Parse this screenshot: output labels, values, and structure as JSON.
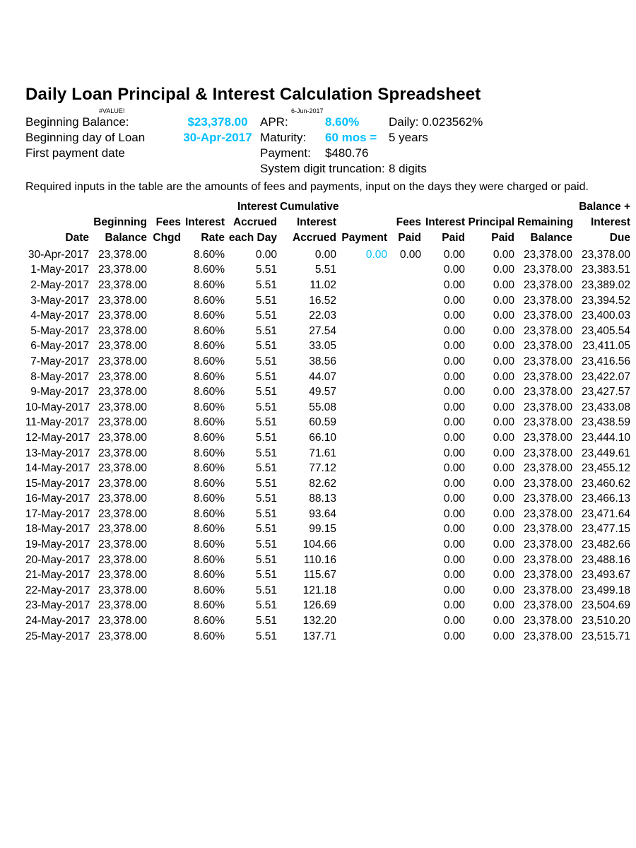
{
  "style": {
    "accent_color": "#00bfff",
    "text_color": "#000000",
    "background_color": "#ffffff",
    "font_family": "Arial",
    "title_fontsize": 24,
    "body_fontsize": 17,
    "table_fontsize": 15.5,
    "tiny_fontsize": 9
  },
  "title": "Daily Loan Principal & Interest Calculation Spreadsheet",
  "sub": {
    "value_error": "#VALUE!",
    "doc_date": "6-Jun-2017"
  },
  "summary": {
    "beginning_balance_label": "Beginning Balance:",
    "beginning_balance_value": "$23,378.00",
    "beginning_day_label": "Beginning day of Loan",
    "beginning_day_value": "30-Apr-2017",
    "first_payment_label": "First payment date",
    "apr_label": "APR:",
    "apr_value": "8.60%",
    "daily_label": "Daily: 0.023562%",
    "maturity_label": "Maturity:",
    "maturity_value": "60 mos =",
    "maturity_years": "5 years",
    "payment_label": "Payment:",
    "payment_value": "$480.76",
    "truncation_label": "System digit truncation:",
    "truncation_value": "8 digits"
  },
  "note": "Required inputs in the table are the amounts of fees and payments, input on the days they were charged or paid.",
  "table": {
    "columns": [
      {
        "key": "date",
        "h1": "",
        "h2": "",
        "h3": "Date",
        "width": "c-date"
      },
      {
        "key": "begbal",
        "h1": "",
        "h2": "Beginning",
        "h3": "Balance",
        "width": "c-begbal"
      },
      {
        "key": "feeschgd",
        "h1": "",
        "h2": "Fees",
        "h3": "Chgd",
        "width": "c-fees"
      },
      {
        "key": "rate",
        "h1": "",
        "h2": "Interest",
        "h3": "Rate",
        "width": "c-rate"
      },
      {
        "key": "accday",
        "h1": "Interest",
        "h2": "Accrued",
        "h3": "each Day",
        "width": "c-accday"
      },
      {
        "key": "cum",
        "h1": "Cumulative",
        "h2": "Interest",
        "h3": "Accrued",
        "width": "c-cum"
      },
      {
        "key": "payment",
        "h1": "",
        "h2": "",
        "h3": "Payment",
        "width": "c-pay"
      },
      {
        "key": "feespaid",
        "h1": "",
        "h2": "Fees",
        "h3": "Paid",
        "width": "c-fpaid"
      },
      {
        "key": "intpaid",
        "h1": "",
        "h2": "Interest",
        "h3": "Paid",
        "width": "c-ipaid"
      },
      {
        "key": "prinpaid",
        "h1": "",
        "h2": "Principal",
        "h3": "Paid",
        "width": "c-ppaid"
      },
      {
        "key": "rembal",
        "h1": "",
        "h2": "Remaining",
        "h3": "Balance",
        "width": "c-rembal"
      },
      {
        "key": "baldue",
        "h1": "Balance +",
        "h2": "Interest",
        "h3": "Due",
        "width": "c-baldue"
      }
    ],
    "rows": [
      {
        "date": "30-Apr-2017",
        "begbal": "23,378.00",
        "feeschgd": "",
        "rate": "8.60%",
        "accday": "0.00",
        "cum": "0.00",
        "payment": "0.00",
        "payment_accent": true,
        "feespaid": "0.00",
        "intpaid": "0.00",
        "prinpaid": "0.00",
        "rembal": "23,378.00",
        "baldue": "23,378.00"
      },
      {
        "date": "1-May-2017",
        "begbal": "23,378.00",
        "feeschgd": "",
        "rate": "8.60%",
        "accday": "5.51",
        "cum": "5.51",
        "payment": "",
        "feespaid": "",
        "intpaid": "0.00",
        "prinpaid": "0.00",
        "rembal": "23,378.00",
        "baldue": "23,383.51"
      },
      {
        "date": "2-May-2017",
        "begbal": "23,378.00",
        "feeschgd": "",
        "rate": "8.60%",
        "accday": "5.51",
        "cum": "11.02",
        "payment": "",
        "feespaid": "",
        "intpaid": "0.00",
        "prinpaid": "0.00",
        "rembal": "23,378.00",
        "baldue": "23,389.02"
      },
      {
        "date": "3-May-2017",
        "begbal": "23,378.00",
        "feeschgd": "",
        "rate": "8.60%",
        "accday": "5.51",
        "cum": "16.52",
        "payment": "",
        "feespaid": "",
        "intpaid": "0.00",
        "prinpaid": "0.00",
        "rembal": "23,378.00",
        "baldue": "23,394.52"
      },
      {
        "date": "4-May-2017",
        "begbal": "23,378.00",
        "feeschgd": "",
        "rate": "8.60%",
        "accday": "5.51",
        "cum": "22.03",
        "payment": "",
        "feespaid": "",
        "intpaid": "0.00",
        "prinpaid": "0.00",
        "rembal": "23,378.00",
        "baldue": "23,400.03"
      },
      {
        "date": "5-May-2017",
        "begbal": "23,378.00",
        "feeschgd": "",
        "rate": "8.60%",
        "accday": "5.51",
        "cum": "27.54",
        "payment": "",
        "feespaid": "",
        "intpaid": "0.00",
        "prinpaid": "0.00",
        "rembal": "23,378.00",
        "baldue": "23,405.54"
      },
      {
        "date": "6-May-2017",
        "begbal": "23,378.00",
        "feeschgd": "",
        "rate": "8.60%",
        "accday": "5.51",
        "cum": "33.05",
        "payment": "",
        "feespaid": "",
        "intpaid": "0.00",
        "prinpaid": "0.00",
        "rembal": "23,378.00",
        "baldue": "23,411.05"
      },
      {
        "date": "7-May-2017",
        "begbal": "23,378.00",
        "feeschgd": "",
        "rate": "8.60%",
        "accday": "5.51",
        "cum": "38.56",
        "payment": "",
        "feespaid": "",
        "intpaid": "0.00",
        "prinpaid": "0.00",
        "rembal": "23,378.00",
        "baldue": "23,416.56"
      },
      {
        "date": "8-May-2017",
        "begbal": "23,378.00",
        "feeschgd": "",
        "rate": "8.60%",
        "accday": "5.51",
        "cum": "44.07",
        "payment": "",
        "feespaid": "",
        "intpaid": "0.00",
        "prinpaid": "0.00",
        "rembal": "23,378.00",
        "baldue": "23,422.07"
      },
      {
        "date": "9-May-2017",
        "begbal": "23,378.00",
        "feeschgd": "",
        "rate": "8.60%",
        "accday": "5.51",
        "cum": "49.57",
        "payment": "",
        "feespaid": "",
        "intpaid": "0.00",
        "prinpaid": "0.00",
        "rembal": "23,378.00",
        "baldue": "23,427.57"
      },
      {
        "date": "10-May-2017",
        "begbal": "23,378.00",
        "feeschgd": "",
        "rate": "8.60%",
        "accday": "5.51",
        "cum": "55.08",
        "payment": "",
        "feespaid": "",
        "intpaid": "0.00",
        "prinpaid": "0.00",
        "rembal": "23,378.00",
        "baldue": "23,433.08"
      },
      {
        "date": "11-May-2017",
        "begbal": "23,378.00",
        "feeschgd": "",
        "rate": "8.60%",
        "accday": "5.51",
        "cum": "60.59",
        "payment": "",
        "feespaid": "",
        "intpaid": "0.00",
        "prinpaid": "0.00",
        "rembal": "23,378.00",
        "baldue": "23,438.59"
      },
      {
        "date": "12-May-2017",
        "begbal": "23,378.00",
        "feeschgd": "",
        "rate": "8.60%",
        "accday": "5.51",
        "cum": "66.10",
        "payment": "",
        "feespaid": "",
        "intpaid": "0.00",
        "prinpaid": "0.00",
        "rembal": "23,378.00",
        "baldue": "23,444.10"
      },
      {
        "date": "13-May-2017",
        "begbal": "23,378.00",
        "feeschgd": "",
        "rate": "8.60%",
        "accday": "5.51",
        "cum": "71.61",
        "payment": "",
        "feespaid": "",
        "intpaid": "0.00",
        "prinpaid": "0.00",
        "rembal": "23,378.00",
        "baldue": "23,449.61"
      },
      {
        "date": "14-May-2017",
        "begbal": "23,378.00",
        "feeschgd": "",
        "rate": "8.60%",
        "accday": "5.51",
        "cum": "77.12",
        "payment": "",
        "feespaid": "",
        "intpaid": "0.00",
        "prinpaid": "0.00",
        "rembal": "23,378.00",
        "baldue": "23,455.12"
      },
      {
        "date": "15-May-2017",
        "begbal": "23,378.00",
        "feeschgd": "",
        "rate": "8.60%",
        "accday": "5.51",
        "cum": "82.62",
        "payment": "",
        "feespaid": "",
        "intpaid": "0.00",
        "prinpaid": "0.00",
        "rembal": "23,378.00",
        "baldue": "23,460.62"
      },
      {
        "date": "16-May-2017",
        "begbal": "23,378.00",
        "feeschgd": "",
        "rate": "8.60%",
        "accday": "5.51",
        "cum": "88.13",
        "payment": "",
        "feespaid": "",
        "intpaid": "0.00",
        "prinpaid": "0.00",
        "rembal": "23,378.00",
        "baldue": "23,466.13"
      },
      {
        "date": "17-May-2017",
        "begbal": "23,378.00",
        "feeschgd": "",
        "rate": "8.60%",
        "accday": "5.51",
        "cum": "93.64",
        "payment": "",
        "feespaid": "",
        "intpaid": "0.00",
        "prinpaid": "0.00",
        "rembal": "23,378.00",
        "baldue": "23,471.64"
      },
      {
        "date": "18-May-2017",
        "begbal": "23,378.00",
        "feeschgd": "",
        "rate": "8.60%",
        "accday": "5.51",
        "cum": "99.15",
        "payment": "",
        "feespaid": "",
        "intpaid": "0.00",
        "prinpaid": "0.00",
        "rembal": "23,378.00",
        "baldue": "23,477.15"
      },
      {
        "date": "19-May-2017",
        "begbal": "23,378.00",
        "feeschgd": "",
        "rate": "8.60%",
        "accday": "5.51",
        "cum": "104.66",
        "payment": "",
        "feespaid": "",
        "intpaid": "0.00",
        "prinpaid": "0.00",
        "rembal": "23,378.00",
        "baldue": "23,482.66"
      },
      {
        "date": "20-May-2017",
        "begbal": "23,378.00",
        "feeschgd": "",
        "rate": "8.60%",
        "accday": "5.51",
        "cum": "110.16",
        "payment": "",
        "feespaid": "",
        "intpaid": "0.00",
        "prinpaid": "0.00",
        "rembal": "23,378.00",
        "baldue": "23,488.16"
      },
      {
        "date": "21-May-2017",
        "begbal": "23,378.00",
        "feeschgd": "",
        "rate": "8.60%",
        "accday": "5.51",
        "cum": "115.67",
        "payment": "",
        "feespaid": "",
        "intpaid": "0.00",
        "prinpaid": "0.00",
        "rembal": "23,378.00",
        "baldue": "23,493.67"
      },
      {
        "date": "22-May-2017",
        "begbal": "23,378.00",
        "feeschgd": "",
        "rate": "8.60%",
        "accday": "5.51",
        "cum": "121.18",
        "payment": "",
        "feespaid": "",
        "intpaid": "0.00",
        "prinpaid": "0.00",
        "rembal": "23,378.00",
        "baldue": "23,499.18"
      },
      {
        "date": "23-May-2017",
        "begbal": "23,378.00",
        "feeschgd": "",
        "rate": "8.60%",
        "accday": "5.51",
        "cum": "126.69",
        "payment": "",
        "feespaid": "",
        "intpaid": "0.00",
        "prinpaid": "0.00",
        "rembal": "23,378.00",
        "baldue": "23,504.69"
      },
      {
        "date": "24-May-2017",
        "begbal": "23,378.00",
        "feeschgd": "",
        "rate": "8.60%",
        "accday": "5.51",
        "cum": "132.20",
        "payment": "",
        "feespaid": "",
        "intpaid": "0.00",
        "prinpaid": "0.00",
        "rembal": "23,378.00",
        "baldue": "23,510.20"
      },
      {
        "date": "25-May-2017",
        "begbal": "23,378.00",
        "feeschgd": "",
        "rate": "8.60%",
        "accday": "5.51",
        "cum": "137.71",
        "payment": "",
        "feespaid": "",
        "intpaid": "0.00",
        "prinpaid": "0.00",
        "rembal": "23,378.00",
        "baldue": "23,515.71"
      }
    ]
  }
}
